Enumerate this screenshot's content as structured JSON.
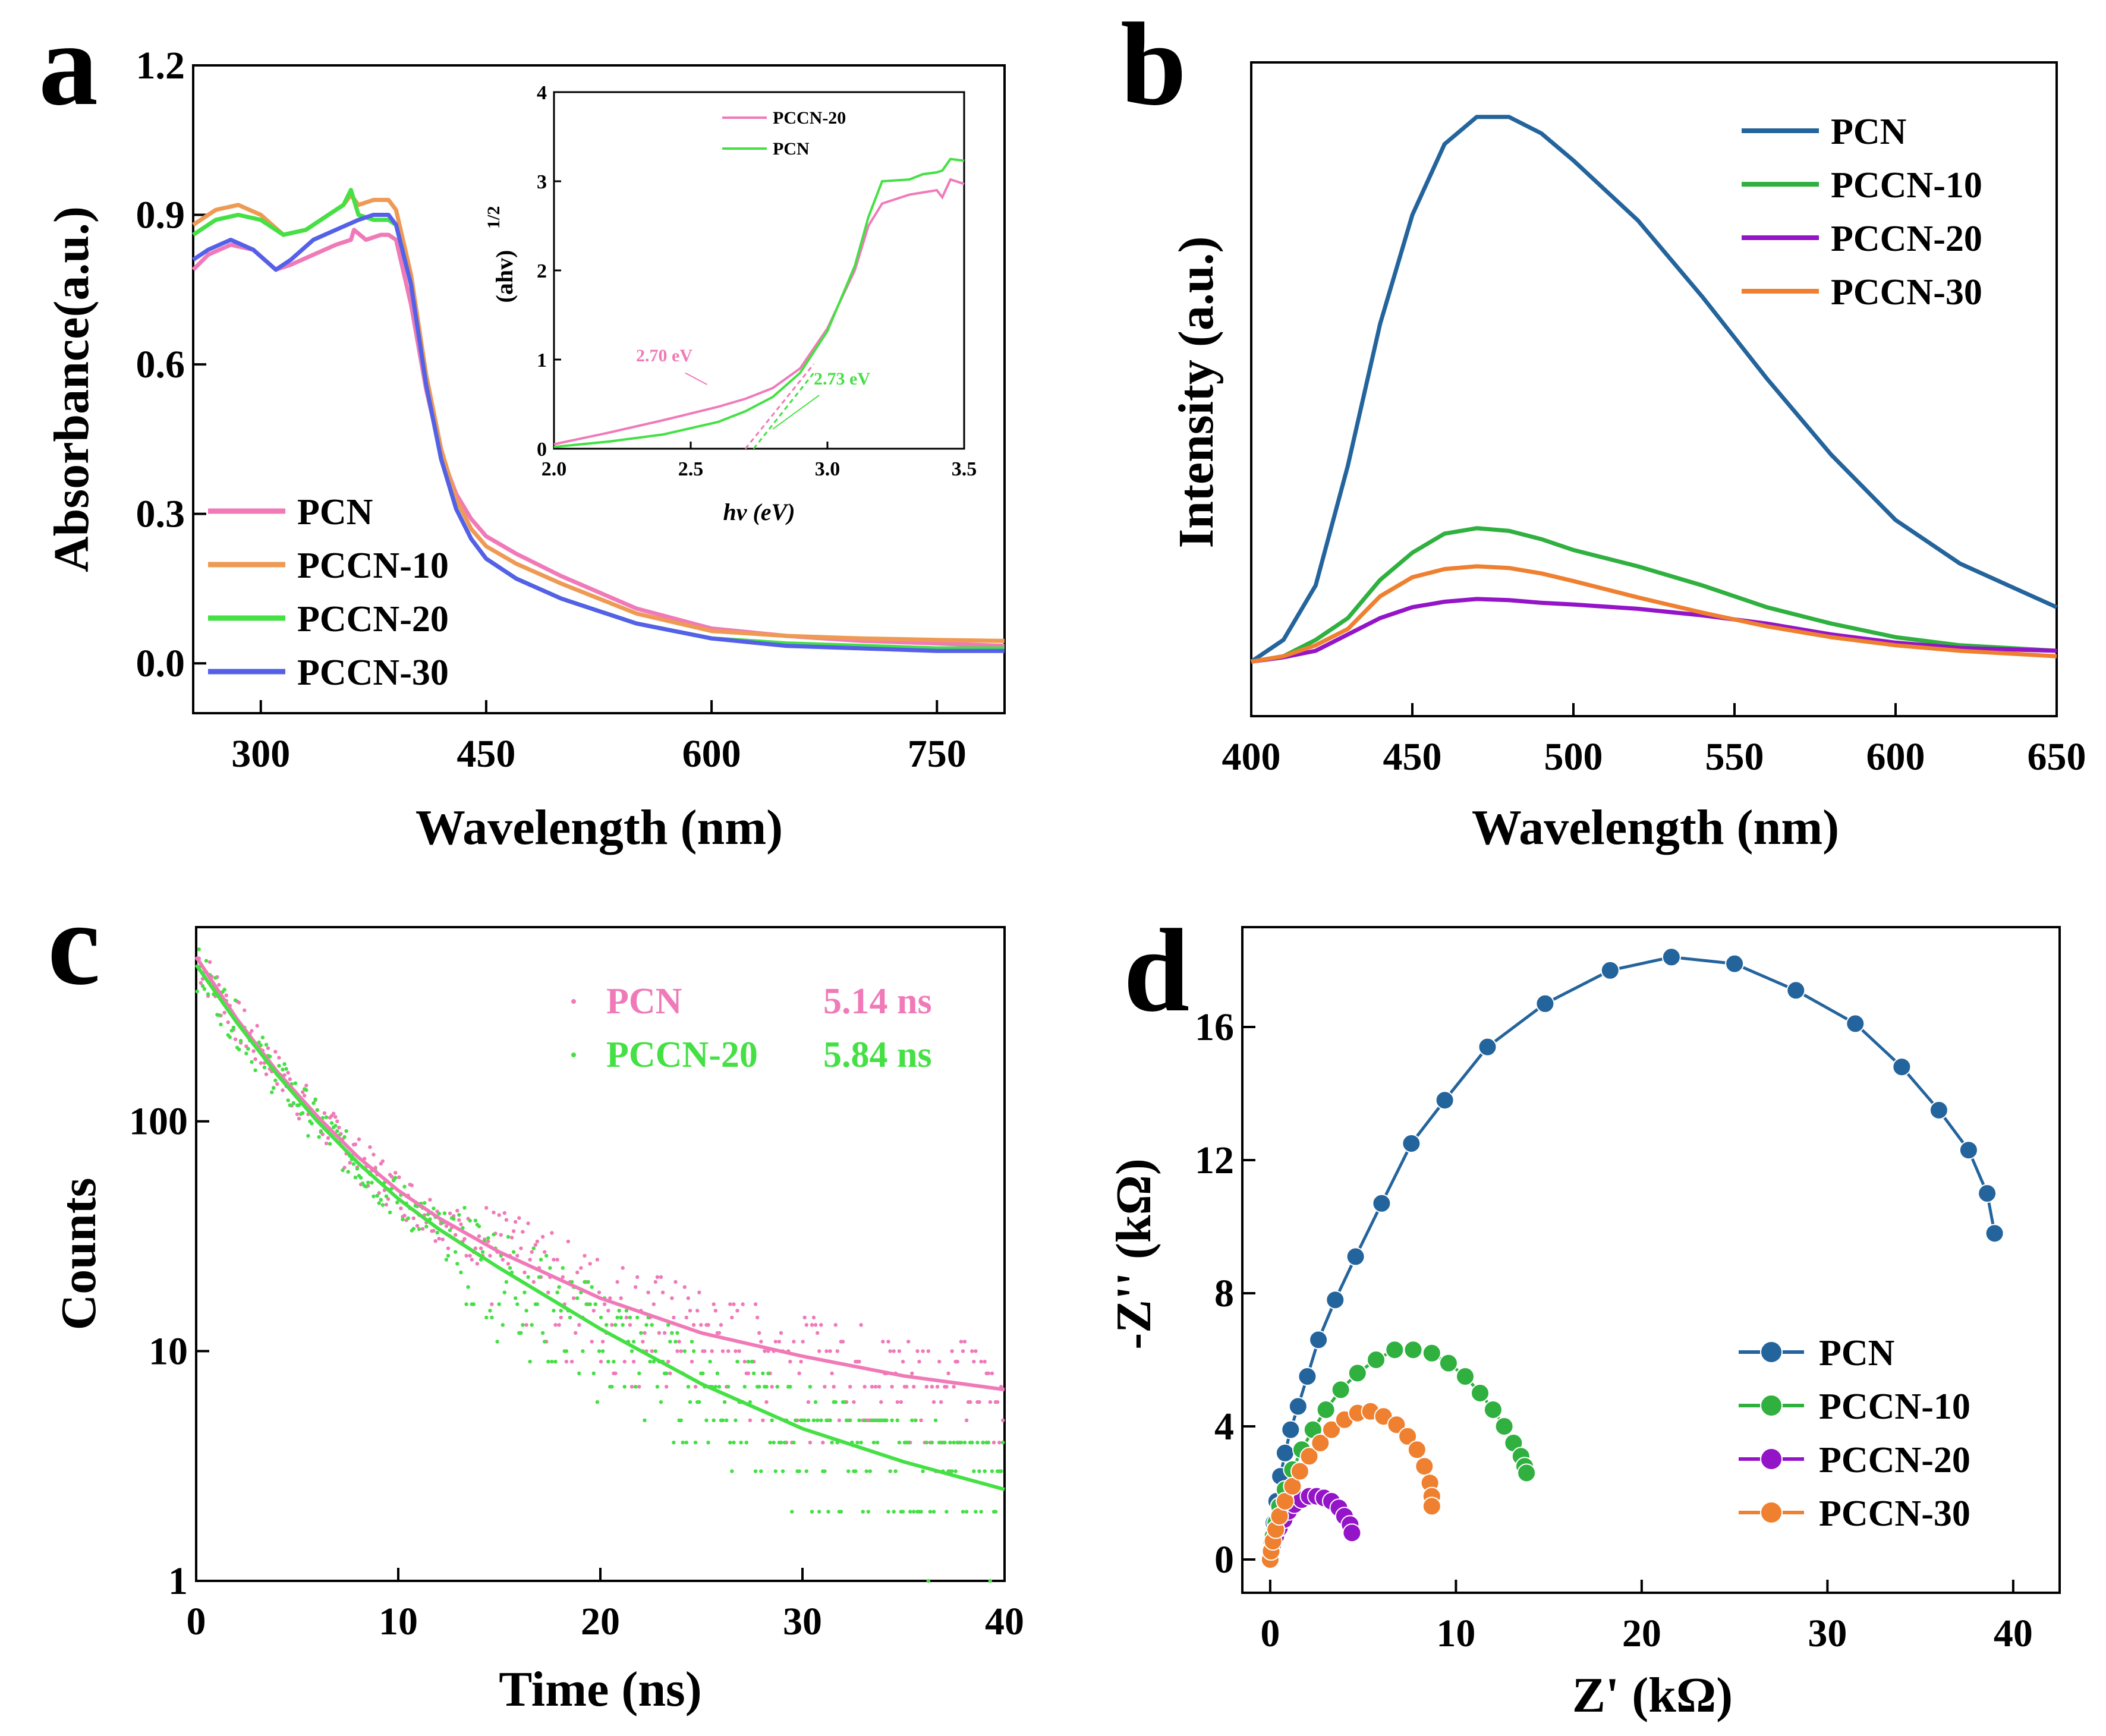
{
  "colors": {
    "pink": "#f07ab8",
    "orange": "#ee9a55",
    "green": "#44e044",
    "blue": "#5560e8",
    "dblue": "#24649c",
    "dgreen": "#2fb03f",
    "purple": "#9414c8",
    "dorange": "#ee8030"
  },
  "panels": {
    "a": "a",
    "b": "b",
    "c": "c",
    "d": "d"
  },
  "chart_data": [
    {
      "panel": "a",
      "type": "line",
      "xlabel": "Wavelength (nm)",
      "ylabel": "Absorbance(a.u.)",
      "xlim": [
        255,
        795
      ],
      "ylim": [
        -0.1,
        1.2
      ],
      "xticks": [
        300,
        450,
        600,
        750
      ],
      "yticks": [
        0.0,
        0.3,
        0.6,
        0.9,
        1.2
      ],
      "xtick_labels": [
        "300",
        "450",
        "600",
        "750"
      ],
      "ytick_labels": [
        "0.0",
        "0.3",
        "0.6",
        "0.9",
        "1.2"
      ],
      "legend_position": "bottom-left",
      "series": [
        {
          "name": "PCN",
          "color": "#f07ab8",
          "x": [
            255,
            265,
            280,
            295,
            310,
            320,
            335,
            350,
            360,
            362,
            370,
            380,
            385,
            390,
            400,
            410,
            420,
            430,
            440,
            450,
            470,
            500,
            550,
            600,
            650,
            700,
            750,
            795
          ],
          "y": [
            0.79,
            0.82,
            0.84,
            0.83,
            0.79,
            0.8,
            0.82,
            0.84,
            0.85,
            0.87,
            0.85,
            0.86,
            0.86,
            0.85,
            0.72,
            0.55,
            0.42,
            0.34,
            0.29,
            0.255,
            0.22,
            0.175,
            0.11,
            0.07,
            0.055,
            0.045,
            0.04,
            0.035
          ]
        },
        {
          "name": "PCCN-10",
          "color": "#ee9a55",
          "x": [
            255,
            270,
            285,
            300,
            315,
            330,
            345,
            355,
            360,
            365,
            375,
            385,
            390,
            400,
            410,
            420,
            430,
            440,
            450,
            470,
            500,
            550,
            600,
            650,
            700,
            750,
            795
          ],
          "y": [
            0.88,
            0.91,
            0.92,
            0.9,
            0.86,
            0.87,
            0.9,
            0.92,
            0.94,
            0.92,
            0.93,
            0.93,
            0.91,
            0.78,
            0.58,
            0.43,
            0.33,
            0.27,
            0.235,
            0.2,
            0.16,
            0.1,
            0.065,
            0.055,
            0.05,
            0.047,
            0.045
          ]
        },
        {
          "name": "PCCN-20",
          "color": "#44e044",
          "x": [
            255,
            270,
            285,
            300,
            315,
            330,
            345,
            355,
            360,
            365,
            375,
            385,
            390,
            400,
            410,
            420,
            430,
            440,
            450,
            470,
            500,
            550,
            600,
            650,
            700,
            750,
            795
          ],
          "y": [
            0.86,
            0.89,
            0.9,
            0.89,
            0.86,
            0.87,
            0.9,
            0.92,
            0.95,
            0.9,
            0.89,
            0.89,
            0.88,
            0.76,
            0.56,
            0.41,
            0.31,
            0.25,
            0.21,
            0.17,
            0.13,
            0.08,
            0.05,
            0.04,
            0.035,
            0.03,
            0.03
          ]
        },
        {
          "name": "PCCN-30",
          "color": "#5560e8",
          "x": [
            255,
            265,
            280,
            295,
            310,
            320,
            335,
            350,
            365,
            375,
            385,
            390,
            400,
            410,
            420,
            430,
            440,
            450,
            470,
            500,
            550,
            600,
            650,
            700,
            750,
            795
          ],
          "y": [
            0.81,
            0.83,
            0.85,
            0.83,
            0.79,
            0.81,
            0.85,
            0.87,
            0.89,
            0.9,
            0.9,
            0.88,
            0.76,
            0.56,
            0.41,
            0.31,
            0.25,
            0.21,
            0.17,
            0.13,
            0.08,
            0.05,
            0.035,
            0.03,
            0.025,
            0.025
          ]
        }
      ],
      "inset": {
        "type": "line",
        "xlabel": "hv (eV)",
        "ylabel": "(ahv)",
        "ylabel_sup": "1/2",
        "xlim": [
          2.0,
          3.5
        ],
        "ylim": [
          0,
          4
        ],
        "xticks": [
          2.0,
          2.5,
          3.0,
          3.5
        ],
        "yticks": [
          0,
          1,
          2,
          3,
          4
        ],
        "xtick_labels": [
          "2.0",
          "2.5",
          "3.0",
          "3.5"
        ],
        "ytick_labels": [
          "0",
          "1",
          "2",
          "3",
          "4"
        ],
        "legend_position": "top",
        "series": [
          {
            "name": "PCCN-20",
            "color": "#f07ab8",
            "x": [
              2.0,
              2.2,
              2.4,
              2.6,
              2.7,
              2.8,
              2.9,
              3.0,
              3.1,
              3.15,
              3.2,
              3.3,
              3.4,
              3.42,
              3.45,
              3.5
            ],
            "y": [
              0.05,
              0.18,
              0.32,
              0.47,
              0.56,
              0.68,
              0.9,
              1.35,
              2.0,
              2.5,
              2.75,
              2.85,
              2.9,
              2.82,
              3.02,
              2.97
            ]
          },
          {
            "name": "PCN",
            "color": "#44e044",
            "x": [
              2.0,
              2.2,
              2.4,
              2.6,
              2.7,
              2.8,
              2.9,
              3.0,
              3.1,
              3.15,
              3.2,
              3.3,
              3.35,
              3.4,
              3.42,
              3.45,
              3.5
            ],
            "y": [
              0.02,
              0.08,
              0.16,
              0.3,
              0.42,
              0.58,
              0.85,
              1.32,
              2.05,
              2.6,
              3.0,
              3.02,
              3.08,
              3.1,
              3.12,
              3.25,
              3.23
            ]
          }
        ],
        "tangents": [
          {
            "color": "#f07ab8",
            "x": [
              2.7,
              2.95
            ],
            "y": [
              0,
              0.95
            ]
          },
          {
            "color": "#44e044",
            "x": [
              2.73,
              2.95
            ],
            "y": [
              0,
              0.85
            ]
          }
        ],
        "annotations": [
          {
            "text": "2.70 eV",
            "color": "#f07ab8",
            "x": 2.3,
            "y": 0.98
          },
          {
            "text": "2.73 eV",
            "color": "#44e044",
            "x": 2.95,
            "y": 0.72
          }
        ]
      }
    },
    {
      "panel": "b",
      "type": "line",
      "xlabel": "Wavelength (nm)",
      "ylabel": "Intensity (a.u.)",
      "xlim": [
        400,
        650
      ],
      "ylim": [
        -0.1,
        1.1
      ],
      "xticks": [
        400,
        450,
        500,
        550,
        600,
        650
      ],
      "xtick_labels": [
        "400",
        "450",
        "500",
        "550",
        "600",
        "650"
      ],
      "yticks": [],
      "legend_position": "top-right",
      "series": [
        {
          "name": "PCN",
          "color": "#24649c",
          "x": [
            400,
            410,
            420,
            430,
            440,
            450,
            460,
            470,
            480,
            490,
            500,
            520,
            540,
            560,
            580,
            600,
            620,
            650
          ],
          "y": [
            0.0,
            0.04,
            0.14,
            0.36,
            0.62,
            0.82,
            0.95,
            1.0,
            1.0,
            0.97,
            0.92,
            0.81,
            0.67,
            0.52,
            0.38,
            0.26,
            0.18,
            0.1
          ]
        },
        {
          "name": "PCCN-10",
          "color": "#2fb03f",
          "x": [
            400,
            410,
            420,
            430,
            440,
            450,
            460,
            470,
            480,
            490,
            500,
            520,
            540,
            560,
            580,
            600,
            620,
            650
          ],
          "y": [
            0.0,
            0.01,
            0.04,
            0.08,
            0.15,
            0.2,
            0.235,
            0.245,
            0.24,
            0.225,
            0.205,
            0.175,
            0.14,
            0.1,
            0.07,
            0.045,
            0.03,
            0.02
          ]
        },
        {
          "name": "PCCN-20",
          "color": "#9414c8",
          "x": [
            400,
            410,
            420,
            430,
            440,
            450,
            460,
            470,
            480,
            490,
            500,
            520,
            540,
            560,
            580,
            600,
            620,
            650
          ],
          "y": [
            0.0,
            0.008,
            0.02,
            0.05,
            0.08,
            0.1,
            0.11,
            0.115,
            0.113,
            0.108,
            0.105,
            0.097,
            0.085,
            0.07,
            0.05,
            0.035,
            0.025,
            0.02
          ]
        },
        {
          "name": "PCCN-30",
          "color": "#ee8030",
          "x": [
            400,
            410,
            420,
            430,
            440,
            450,
            460,
            470,
            480,
            490,
            500,
            520,
            540,
            560,
            580,
            600,
            620,
            650
          ],
          "y": [
            0.0,
            0.01,
            0.03,
            0.06,
            0.12,
            0.155,
            0.17,
            0.175,
            0.172,
            0.162,
            0.148,
            0.118,
            0.09,
            0.065,
            0.045,
            0.03,
            0.02,
            0.01
          ]
        }
      ]
    },
    {
      "panel": "c",
      "type": "scatter",
      "xlabel": "Time (ns)",
      "ylabel": "Counts",
      "xlim": [
        0,
        40
      ],
      "ylim_log": [
        1,
        700
      ],
      "yscale": "log",
      "xticks": [
        0,
        10,
        20,
        30,
        40
      ],
      "xtick_labels": [
        "0",
        "10",
        "20",
        "30",
        "40"
      ],
      "yticks": [
        1,
        10,
        100
      ],
      "ytick_labels": [
        "1",
        "10",
        "100"
      ],
      "legend_position": "top-right",
      "series": [
        {
          "name": "PCN",
          "lifetime": "5.14 ns",
          "color": "#f07ab8",
          "fit_x": [
            0,
            2,
            4,
            6,
            8,
            10,
            12,
            15,
            20,
            25,
            30,
            35,
            40
          ],
          "fit_y": [
            520,
            280,
            165,
            105,
            70,
            50,
            38,
            27,
            17,
            12,
            9.5,
            7.8,
            6.8
          ]
        },
        {
          "name": "PCCN-20",
          "lifetime": "5.84 ns",
          "color": "#44e044",
          "fit_x": [
            0,
            2,
            4,
            6,
            8,
            10,
            12,
            15,
            20,
            25,
            30,
            35,
            40
          ],
          "fit_y": [
            480,
            270,
            160,
            100,
            66,
            46,
            34,
            23,
            12.5,
            7.2,
            4.6,
            3.3,
            2.5
          ]
        }
      ]
    },
    {
      "panel": "d",
      "type": "line",
      "xlabel": "Z' (kΩ)",
      "ylabel": "-Z'' (kΩ)",
      "xlim": [
        -1.5,
        42.5
      ],
      "ylim": [
        -1,
        19
      ],
      "xticks": [
        0,
        10,
        20,
        30,
        40
      ],
      "xtick_labels": [
        "0",
        "10",
        "20",
        "30",
        "40"
      ],
      "yticks": [
        0,
        4,
        8,
        12,
        16
      ],
      "ytick_labels": [
        "0",
        "4",
        "8",
        "12",
        "16"
      ],
      "legend_position": "bottom-right",
      "series": [
        {
          "name": "PCN",
          "color": "#24649c",
          "x": [
            0,
            0.08,
            0.2,
            0.35,
            0.55,
            0.8,
            1.1,
            1.5,
            2.0,
            2.6,
            3.5,
            4.6,
            6.0,
            7.6,
            9.4,
            11.7,
            14.8,
            18.3,
            21.6,
            25.0,
            28.3,
            31.5,
            34.0,
            36.0,
            37.6,
            38.6,
            39.0
          ],
          "y": [
            0,
            0.5,
            1.1,
            1.75,
            2.5,
            3.2,
            3.9,
            4.6,
            5.5,
            6.6,
            7.8,
            9.1,
            10.7,
            12.5,
            13.8,
            15.4,
            16.7,
            17.7,
            18.1,
            17.9,
            17.1,
            16.1,
            14.8,
            13.5,
            12.3,
            11.0,
            9.8
          ]
        },
        {
          "name": "PCCN-10",
          "color": "#2fb03f",
          "x": [
            0,
            0.05,
            0.15,
            0.3,
            0.5,
            0.8,
            1.2,
            1.7,
            2.3,
            3.0,
            3.8,
            4.7,
            5.7,
            6.7,
            7.7,
            8.7,
            9.6,
            10.5,
            11.3,
            12.0,
            12.6,
            13.1,
            13.5,
            13.7,
            13.8
          ],
          "y": [
            0,
            0.3,
            0.7,
            1.1,
            1.6,
            2.1,
            2.7,
            3.3,
            3.9,
            4.5,
            5.1,
            5.6,
            6.0,
            6.3,
            6.3,
            6.2,
            5.9,
            5.5,
            5.0,
            4.5,
            4.0,
            3.5,
            3.1,
            2.8,
            2.6
          ]
        },
        {
          "name": "PCCN-20",
          "color": "#9414c8",
          "x": [
            0,
            0.05,
            0.15,
            0.3,
            0.5,
            0.75,
            1.0,
            1.3,
            1.7,
            2.1,
            2.5,
            2.9,
            3.3,
            3.7,
            4.0,
            4.3,
            4.4
          ],
          "y": [
            0,
            0.2,
            0.45,
            0.7,
            0.95,
            1.2,
            1.45,
            1.65,
            1.8,
            1.9,
            1.9,
            1.85,
            1.75,
            1.55,
            1.3,
            1.05,
            0.8
          ]
        },
        {
          "name": "PCCN-30",
          "color": "#ee8030",
          "x": [
            0,
            0.05,
            0.15,
            0.3,
            0.5,
            0.8,
            1.2,
            1.6,
            2.1,
            2.7,
            3.3,
            4.0,
            4.7,
            5.4,
            6.1,
            6.8,
            7.4,
            7.9,
            8.3,
            8.6,
            8.7,
            8.7
          ],
          "y": [
            0,
            0.25,
            0.55,
            0.9,
            1.3,
            1.75,
            2.2,
            2.65,
            3.1,
            3.5,
            3.9,
            4.2,
            4.4,
            4.45,
            4.3,
            4.05,
            3.7,
            3.3,
            2.8,
            2.3,
            1.9,
            1.6
          ]
        }
      ]
    }
  ]
}
